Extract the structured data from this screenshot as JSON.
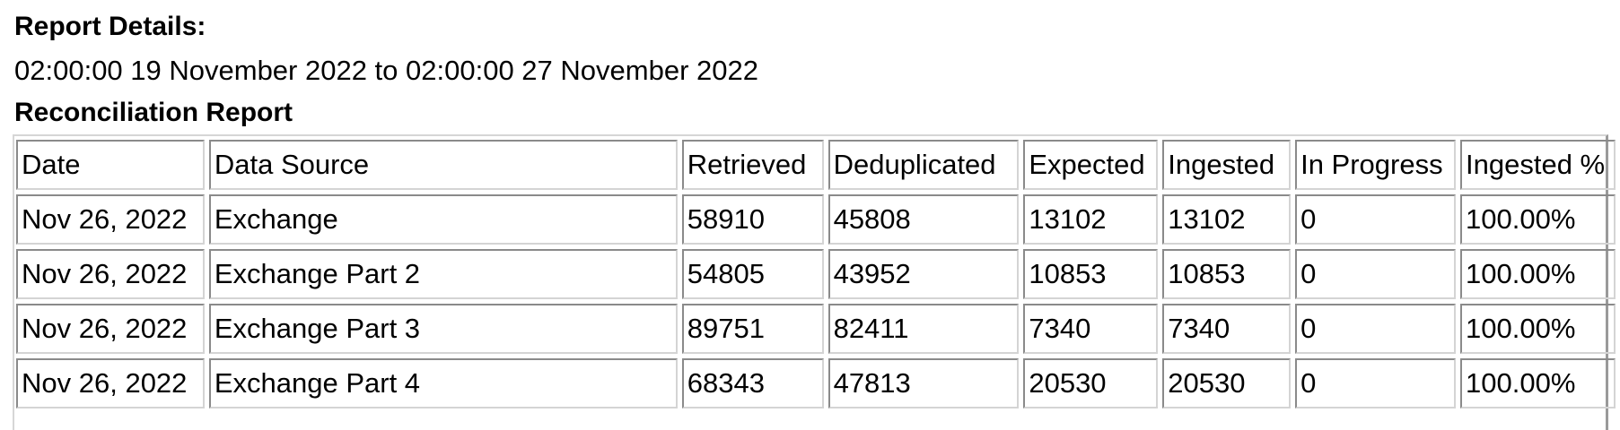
{
  "report": {
    "details_label": "Report Details:",
    "date_range": "02:00:00 19 November 2022 to 02:00:00 27 November 2022",
    "title": "Reconciliation Report"
  },
  "table": {
    "headers": [
      "Date",
      "Data Source",
      "Retrieved",
      "Deduplicated",
      "Expected",
      "Ingested",
      "In Progress",
      "Ingested %"
    ],
    "rows": [
      [
        "Nov 26, 2022",
        "Exchange",
        "58910",
        "45808",
        "13102",
        "13102",
        "0",
        "100.00%"
      ],
      [
        "Nov 26, 2022",
        "Exchange Part 2",
        "54805",
        "43952",
        "10853",
        "10853",
        "0",
        "100.00%"
      ],
      [
        "Nov 26, 2022",
        "Exchange Part 3",
        "89751",
        "82411",
        "7340",
        "7340",
        "0",
        "100.00%"
      ],
      [
        "Nov 26, 2022",
        "Exchange Part 4",
        "68343",
        "47813",
        "20530",
        "20530",
        "0",
        "100.00%"
      ]
    ]
  }
}
